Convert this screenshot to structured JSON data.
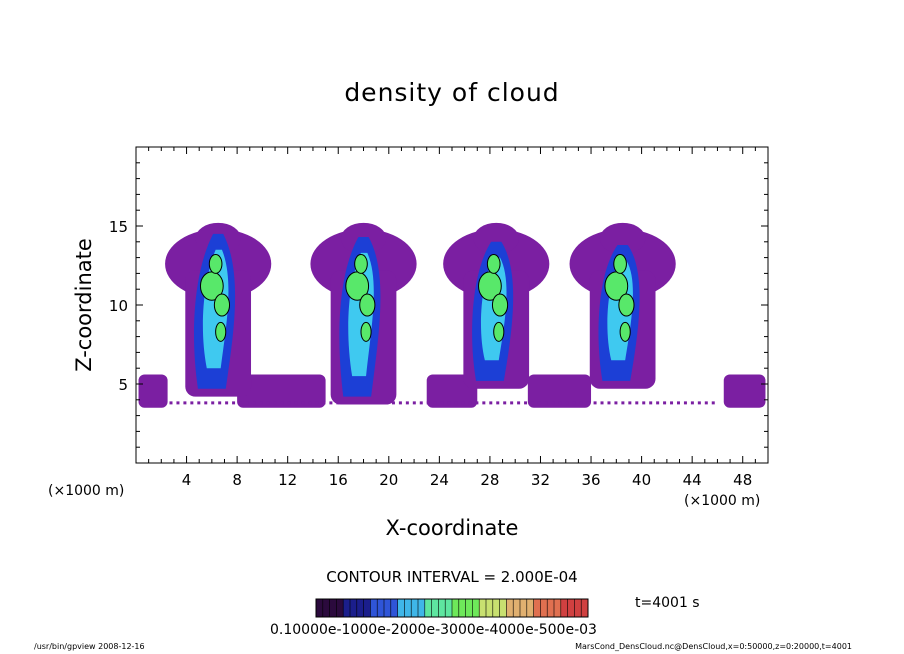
{
  "chart_data": {
    "type": "heatmap",
    "title": "density of cloud",
    "xlabel": "X-coordinate",
    "ylabel": "Z-coordinate",
    "x_unit": "(×1000 m)",
    "y_unit": "(×1000 m)",
    "xlim": [
      0,
      50
    ],
    "ylim": [
      0,
      20
    ],
    "x_ticks": [
      4,
      8,
      12,
      16,
      20,
      24,
      28,
      32,
      36,
      40,
      44,
      48
    ],
    "y_ticks": [
      5,
      10,
      15
    ],
    "contour_interval_text": "CONTOUR INTERVAL = 2.000E-04",
    "time_text": "t=4001 s",
    "colorbar_labels_text": "0.10000e-1000e-2000e-3000e-4000e-500e-03",
    "colorbar_range": [
      0,
      0.001
    ],
    "cloud_floor_z": 4,
    "cloud_top_z": 15,
    "plumes": [
      {
        "x_center": 6.5,
        "base_z": 4.5,
        "top_z": 14.5,
        "peak_density": 0.00055
      },
      {
        "x_center": 18,
        "base_z": 4,
        "top_z": 14.3,
        "peak_density": 0.00055
      },
      {
        "x_center": 28.5,
        "base_z": 5,
        "top_z": 14,
        "peak_density": 0.00045
      },
      {
        "x_center": 38.5,
        "base_z": 5,
        "top_z": 13.8,
        "peak_density": 0.00045
      }
    ],
    "colors": {
      "low": "#7b1fa2",
      "mid": "#1c3fd6",
      "high": "#58e86a",
      "contour": "#000000"
    }
  },
  "footer": {
    "left": "/usr/bin/gpview   2008-12-16",
    "right": "MarsCond_DensCloud.nc@DensCloud,x=0:50000,z=0:20000,t=4001"
  }
}
